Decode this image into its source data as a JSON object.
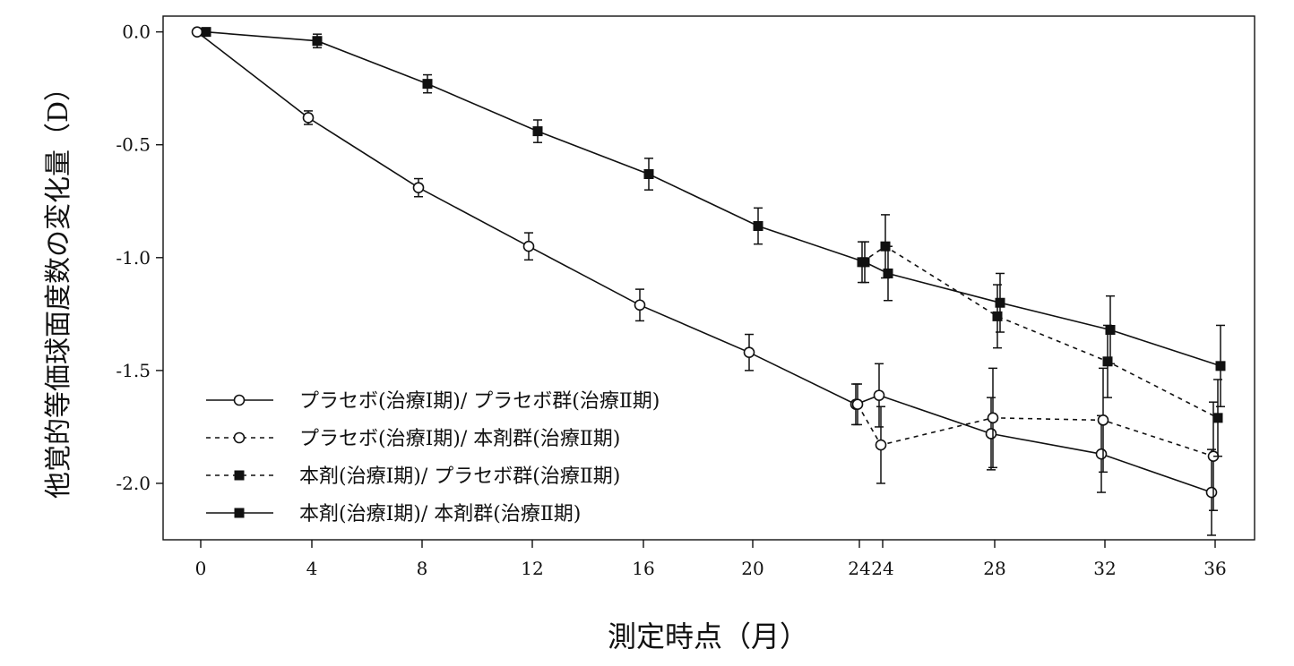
{
  "chart_data": {
    "type": "line",
    "title": "",
    "xlabel": "測定時点（月）",
    "ylabel": "他覚的等価球面度数の変化量（D）",
    "ylim": [
      -2.25,
      0.07
    ],
    "ytick_values": [
      0.0,
      -0.5,
      -1.0,
      -1.5,
      -2.0
    ],
    "ytick_labels": [
      "0.0",
      "-0.5",
      "-1.0",
      "-1.5",
      "-2.0"
    ],
    "xtick_labels": [
      "0",
      "4",
      "8",
      "12",
      "16",
      "20",
      "24",
      "24",
      "28",
      "32",
      "36"
    ],
    "legend_position": "lower-left",
    "series": [
      {
        "name": "プラセボ(治療Ⅰ期)/ プラセボ群(治療Ⅱ期)",
        "marker": "circle-open",
        "line": "solid",
        "points": [
          {
            "slot": 0,
            "y": 0.0,
            "err": 0.0
          },
          {
            "slot": 1,
            "y": -0.38,
            "err": 0.03
          },
          {
            "slot": 2,
            "y": -0.69,
            "err": 0.04
          },
          {
            "slot": 3,
            "y": -0.95,
            "err": 0.06
          },
          {
            "slot": 4,
            "y": -1.21,
            "err": 0.07
          },
          {
            "slot": 5,
            "y": -1.42,
            "err": 0.08
          },
          {
            "slot": 6,
            "y": -1.65,
            "err": 0.09
          },
          {
            "slot": 7,
            "y": -1.61,
            "err": 0.14
          },
          {
            "slot": 8,
            "y": -1.78,
            "err": 0.16
          },
          {
            "slot": 9,
            "y": -1.87,
            "err": 0.17
          },
          {
            "slot": 10,
            "y": -2.04,
            "err": 0.19
          }
        ]
      },
      {
        "name": "プラセボ(治療Ⅰ期)/ 本剤群(治療Ⅱ期)",
        "marker": "circle-open",
        "line": "dashed",
        "points": [
          {
            "slot": 6,
            "y": -1.65,
            "err": 0.09
          },
          {
            "slot": 7,
            "y": -1.83,
            "err": 0.17
          },
          {
            "slot": 8,
            "y": -1.71,
            "err": 0.22
          },
          {
            "slot": 9,
            "y": -1.72,
            "err": 0.23
          },
          {
            "slot": 10,
            "y": -1.88,
            "err": 0.24
          }
        ]
      },
      {
        "name": "本剤(治療Ⅰ期)/ プラセボ群(治療Ⅱ期)",
        "marker": "square-filled",
        "line": "dashed",
        "points": [
          {
            "slot": 6,
            "y": -1.02,
            "err": 0.09
          },
          {
            "slot": 7,
            "y": -0.95,
            "err": 0.14
          },
          {
            "slot": 8,
            "y": -1.26,
            "err": 0.14
          },
          {
            "slot": 9,
            "y": -1.46,
            "err": 0.16
          },
          {
            "slot": 10,
            "y": -1.71,
            "err": 0.17
          }
        ]
      },
      {
        "name": "本剤(治療Ⅰ期)/ 本剤群(治療Ⅱ期)",
        "marker": "square-filled",
        "line": "solid",
        "points": [
          {
            "slot": 0,
            "y": 0.0,
            "err": 0.0
          },
          {
            "slot": 1,
            "y": -0.04,
            "err": 0.03
          },
          {
            "slot": 2,
            "y": -0.23,
            "err": 0.04
          },
          {
            "slot": 3,
            "y": -0.44,
            "err": 0.05
          },
          {
            "slot": 4,
            "y": -0.63,
            "err": 0.07
          },
          {
            "slot": 5,
            "y": -0.86,
            "err": 0.08
          },
          {
            "slot": 6,
            "y": -1.02,
            "err": 0.09
          },
          {
            "slot": 7,
            "y": -1.07,
            "err": 0.12
          },
          {
            "slot": 8,
            "y": -1.2,
            "err": 0.13
          },
          {
            "slot": 9,
            "y": -1.32,
            "err": 0.15
          },
          {
            "slot": 10,
            "y": -1.48,
            "err": 0.18
          }
        ]
      }
    ]
  }
}
